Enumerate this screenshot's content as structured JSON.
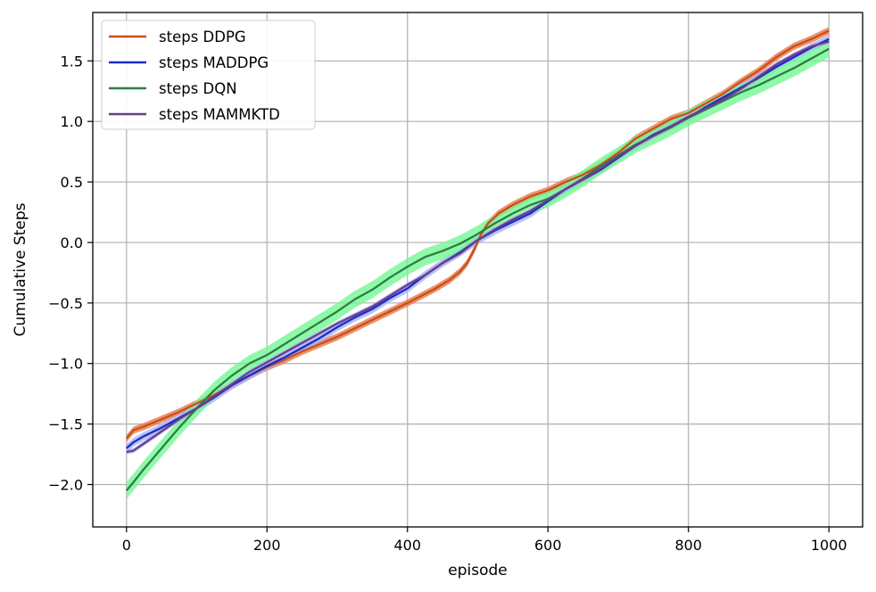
{
  "chart_data": {
    "type": "line",
    "xlabel": "episode",
    "ylabel": "Cumulative Steps",
    "xlim": [
      -48,
      1048
    ],
    "ylim": [
      -2.35,
      1.9
    ],
    "xticks": [
      0,
      200,
      400,
      600,
      800,
      1000
    ],
    "xtick_labels": [
      "0",
      "200",
      "400",
      "600",
      "800",
      "1000"
    ],
    "yticks": [
      -2.0,
      -1.5,
      -1.0,
      -0.5,
      0.0,
      0.5,
      1.0,
      1.5
    ],
    "ytick_labels": [
      "−2.0",
      "−1.5",
      "−1.0",
      "−0.5",
      "0.0",
      "0.5",
      "1.0",
      "1.5"
    ],
    "grid": true,
    "legend_position": "top-left",
    "series": [
      {
        "name": "steps DDPG",
        "color": "#c84f1c",
        "band_color": "#e8784a",
        "band_width": 0.03,
        "x": [
          0,
          10,
          25,
          50,
          75,
          100,
          125,
          150,
          175,
          200,
          225,
          250,
          275,
          300,
          325,
          350,
          375,
          400,
          420,
          440,
          460,
          475,
          485,
          495,
          505,
          515,
          530,
          550,
          575,
          600,
          625,
          650,
          675,
          700,
          725,
          750,
          775,
          800,
          825,
          850,
          875,
          900,
          925,
          950,
          975,
          1000
        ],
        "values": [
          -1.62,
          -1.55,
          -1.52,
          -1.46,
          -1.4,
          -1.33,
          -1.26,
          -1.18,
          -1.1,
          -1.03,
          -0.97,
          -0.9,
          -0.84,
          -0.78,
          -0.71,
          -0.64,
          -0.57,
          -0.5,
          -0.44,
          -0.38,
          -0.31,
          -0.24,
          -0.17,
          -0.06,
          0.07,
          0.16,
          0.24,
          0.31,
          0.38,
          0.43,
          0.5,
          0.56,
          0.64,
          0.74,
          0.86,
          0.94,
          1.02,
          1.07,
          1.15,
          1.23,
          1.33,
          1.42,
          1.53,
          1.62,
          1.68,
          1.75
        ]
      },
      {
        "name": "steps MADDPG",
        "color": "#1a2ccc",
        "band_color": "#a9b3f4",
        "band_width": 0.035,
        "x": [
          0,
          10,
          25,
          50,
          75,
          100,
          125,
          150,
          175,
          200,
          225,
          250,
          275,
          300,
          325,
          350,
          375,
          400,
          425,
          450,
          475,
          500,
          525,
          550,
          575,
          600,
          625,
          650,
          675,
          700,
          725,
          750,
          775,
          800,
          825,
          850,
          875,
          900,
          925,
          950,
          975,
          1000
        ],
        "values": [
          -1.7,
          -1.65,
          -1.6,
          -1.53,
          -1.45,
          -1.37,
          -1.28,
          -1.18,
          -1.1,
          -1.02,
          -0.95,
          -0.87,
          -0.79,
          -0.7,
          -0.62,
          -0.55,
          -0.46,
          -0.38,
          -0.27,
          -0.17,
          -0.08,
          0.02,
          0.1,
          0.17,
          0.24,
          0.34,
          0.44,
          0.52,
          0.6,
          0.7,
          0.8,
          0.89,
          0.96,
          1.03,
          1.12,
          1.2,
          1.28,
          1.36,
          1.45,
          1.53,
          1.61,
          1.68
        ]
      },
      {
        "name": "steps DQN",
        "color": "#2e7d47",
        "band_color": "#74f794",
        "band_width": 0.07,
        "x": [
          0,
          10,
          25,
          50,
          75,
          100,
          125,
          150,
          175,
          200,
          225,
          250,
          275,
          300,
          325,
          350,
          375,
          400,
          425,
          450,
          475,
          500,
          525,
          550,
          575,
          600,
          625,
          650,
          675,
          700,
          725,
          750,
          775,
          800,
          825,
          850,
          875,
          900,
          925,
          950,
          975,
          1000
        ],
        "values": [
          -2.05,
          -1.98,
          -1.87,
          -1.7,
          -1.53,
          -1.37,
          -1.22,
          -1.1,
          -1.0,
          -0.93,
          -0.84,
          -0.75,
          -0.66,
          -0.57,
          -0.47,
          -0.39,
          -0.29,
          -0.2,
          -0.12,
          -0.07,
          -0.01,
          0.07,
          0.16,
          0.24,
          0.31,
          0.36,
          0.44,
          0.53,
          0.63,
          0.72,
          0.81,
          0.88,
          0.95,
          1.03,
          1.1,
          1.17,
          1.24,
          1.3,
          1.37,
          1.44,
          1.52,
          1.6
        ]
      },
      {
        "name": "steps MAMMKTD",
        "color": "#6a3d8a",
        "band_color": "#a9b3f4",
        "band_width": 0.02,
        "x": [
          0,
          10,
          25,
          50,
          75,
          100,
          125,
          150,
          175,
          200,
          225,
          250,
          275,
          300,
          325,
          350,
          375,
          400,
          425,
          450,
          475,
          500,
          525,
          550,
          575,
          600,
          625,
          650,
          675,
          700,
          725,
          750,
          775,
          800,
          825,
          850,
          875,
          900,
          925,
          950,
          975,
          1000
        ],
        "values": [
          -1.73,
          -1.72,
          -1.66,
          -1.56,
          -1.46,
          -1.37,
          -1.27,
          -1.17,
          -1.07,
          -0.99,
          -0.91,
          -0.83,
          -0.75,
          -0.67,
          -0.6,
          -0.53,
          -0.44,
          -0.35,
          -0.27,
          -0.17,
          -0.09,
          0.02,
          0.11,
          0.19,
          0.26,
          0.35,
          0.44,
          0.52,
          0.61,
          0.71,
          0.8,
          0.88,
          0.96,
          1.04,
          1.11,
          1.18,
          1.27,
          1.37,
          1.47,
          1.55,
          1.62,
          1.66
        ]
      }
    ]
  }
}
